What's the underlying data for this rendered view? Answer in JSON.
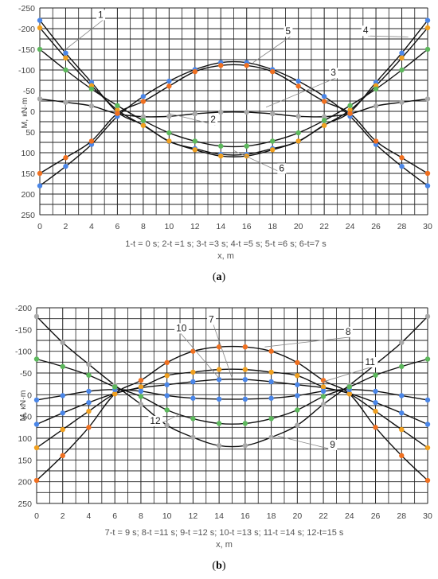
{
  "panels": [
    {
      "label": "a",
      "caption": "1-t = 0 s;  2-t =1 s;  3-t =3 s;  4-t =5 s;  5-t =6 s;  6-t=7 s",
      "xlabel": "x, m",
      "ylabel": "M, кN·m"
    },
    {
      "label": "b",
      "caption": "7-t = 9 s;  8-t =11 s;  9-t =12 s;  10-t =13 s;  11-t =14 s;  12-t=15 s",
      "xlabel": "x, m",
      "ylabel": "M, кN·m"
    }
  ],
  "chart_data": [
    {
      "type": "line",
      "xlabel": "x, m",
      "ylabel": "M, кN·m",
      "xlim": [
        0,
        30
      ],
      "ylim": [
        -250,
        250
      ],
      "y_inverted": true,
      "grid": true,
      "x": [
        0,
        2,
        4,
        6,
        8,
        10,
        12,
        14,
        16,
        18,
        20,
        22,
        24,
        26,
        28,
        30
      ],
      "x_ticks": [
        0,
        2,
        4,
        6,
        8,
        10,
        12,
        14,
        16,
        18,
        20,
        22,
        24,
        26,
        28,
        30
      ],
      "y_ticks": [
        -250,
        -200,
        -150,
        -100,
        -50,
        0,
        50,
        100,
        150,
        200,
        250
      ],
      "series": [
        {
          "name": "1",
          "color": "#4A86E8",
          "values": [
            -220,
            -141,
            -70,
            2,
            33,
            73,
            90,
            104,
            104,
            90,
            73,
            33,
            2,
            -70,
            -141,
            -220
          ]
        },
        {
          "name": "2",
          "color": "#F0A020",
          "values": [
            -202,
            -129,
            -62,
            -3,
            34,
            72,
            93,
            108,
            108,
            93,
            72,
            34,
            -3,
            -62,
            -129,
            -202
          ]
        },
        {
          "name": "3",
          "color": "#A9A9A9",
          "values": [
            -30,
            -22,
            -13,
            6,
            13,
            12,
            6,
            2,
            2,
            6,
            12,
            13,
            6,
            -13,
            -22,
            -30
          ]
        },
        {
          "name": "4",
          "color": "#5CB85C",
          "values": [
            -150,
            -100,
            -54,
            -14,
            22,
            52,
            72,
            84,
            84,
            72,
            52,
            22,
            -14,
            -54,
            -100,
            -150
          ]
        },
        {
          "name": "5",
          "color": "#4A86E8",
          "values": [
            180,
            133,
            80,
            12,
            -36,
            -73,
            -101,
            -118,
            -118,
            -101,
            -73,
            -36,
            12,
            80,
            133,
            180
          ]
        },
        {
          "name": "6",
          "color": "#F07020",
          "values": [
            150,
            112,
            72,
            5,
            -24,
            -61,
            -96,
            -111,
            -111,
            -96,
            -61,
            -24,
            5,
            72,
            112,
            150
          ]
        }
      ],
      "annotations": [
        {
          "text": "1",
          "x": 4.5,
          "y": -228,
          "target": [
            2,
            -150
          ]
        },
        {
          "text": "2",
          "x": 13.2,
          "y": 25,
          "target": [
            10,
            5
          ]
        },
        {
          "text": "3",
          "x": 22.5,
          "y": -88,
          "target": [
            17.5,
            -10
          ]
        },
        {
          "text": "4",
          "x": 25,
          "y": -190,
          "target": [
            28.5,
            -180
          ]
        },
        {
          "text": "5",
          "x": 19,
          "y": -188,
          "target": [
            16.5,
            -118
          ]
        },
        {
          "text": "6",
          "x": 18.5,
          "y": 143,
          "target": [
            15,
            95
          ]
        }
      ]
    },
    {
      "type": "line",
      "xlabel": "x, m",
      "ylabel": "M, кN·m",
      "xlim": [
        0,
        30
      ],
      "ylim": [
        -200,
        250
      ],
      "y_inverted": true,
      "grid": true,
      "x": [
        0,
        2,
        4,
        6,
        8,
        10,
        12,
        14,
        16,
        18,
        20,
        22,
        24,
        26,
        28,
        30
      ],
      "x_ticks": [
        0,
        2,
        4,
        6,
        8,
        10,
        12,
        14,
        16,
        18,
        20,
        22,
        24,
        26,
        28,
        30
      ],
      "y_ticks": [
        -200,
        -150,
        -100,
        -50,
        0,
        50,
        100,
        150,
        200,
        250
      ],
      "series": [
        {
          "name": "7",
          "color": "#4A86E8",
          "values": [
            68,
            42,
            18,
            -3,
            -16,
            -23,
            -30,
            -35,
            -35,
            -30,
            -23,
            -16,
            -3,
            18,
            42,
            68
          ]
        },
        {
          "name": "8",
          "color": "#F07020",
          "values": [
            197,
            140,
            75,
            -2,
            -33,
            -74,
            -100,
            -110,
            -110,
            -100,
            -74,
            -33,
            -2,
            75,
            140,
            197
          ]
        },
        {
          "name": "9",
          "color": "#A9A9A9",
          "values": [
            -180,
            -120,
            -70,
            -22,
            22,
            70,
            98,
            117,
            117,
            98,
            70,
            22,
            -22,
            -70,
            -120,
            -180
          ]
        },
        {
          "name": "10",
          "color": "#F0A020",
          "values": [
            122,
            80,
            38,
            -2,
            -18,
            -44,
            -52,
            -58,
            -58,
            -52,
            -44,
            -18,
            -2,
            38,
            80,
            122
          ]
        },
        {
          "name": "11",
          "color": "#4A86E8",
          "values": [
            12,
            2,
            -8,
            -12,
            -8,
            2,
            8,
            10,
            10,
            8,
            2,
            -8,
            -12,
            -8,
            2,
            12
          ]
        },
        {
          "name": "12",
          "color": "#5CB85C",
          "values": [
            -82,
            -65,
            -45,
            -18,
            4,
            35,
            55,
            66,
            66,
            55,
            35,
            4,
            -18,
            -45,
            -65,
            -82
          ]
        }
      ],
      "annotations": [
        {
          "text": "7",
          "x": 13.2,
          "y": -168,
          "target": [
            15,
            -38
          ]
        },
        {
          "text": "8",
          "x": 23.7,
          "y": -140,
          "target": [
            17.5,
            -110
          ]
        },
        {
          "text": "9",
          "x": 22.5,
          "y": 120,
          "target": [
            18.5,
            95
          ]
        },
        {
          "text": "10",
          "x": 10.7,
          "y": -148,
          "target": [
            14,
            -38
          ]
        },
        {
          "text": "11",
          "x": 25.2,
          "y": -70,
          "target": [
            22,
            -30
          ]
        },
        {
          "text": "12",
          "x": 8.7,
          "y": 65,
          "target": [
            11,
            45
          ]
        }
      ]
    }
  ]
}
